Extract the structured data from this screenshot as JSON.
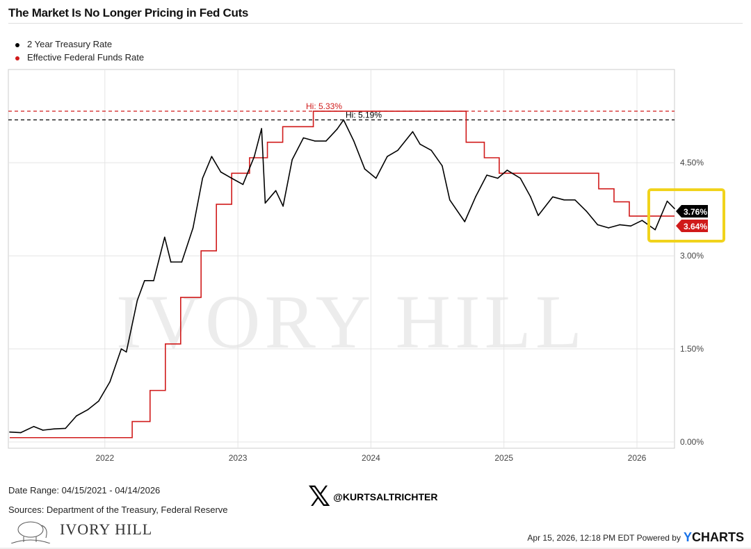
{
  "chart_data": {
    "type": "line",
    "title": "The Market Is No Longer Pricing in Fed Cuts",
    "xlabel": "",
    "ylabel": "",
    "xlim": [
      "2021-04-15",
      "2026-04-14"
    ],
    "ylim": [
      0,
      6.1
    ],
    "x_ticks": [
      "2022",
      "2023",
      "2024",
      "2025",
      "2026"
    ],
    "y_ticks": [
      "0.00%",
      "1.50%",
      "3.00%",
      "4.50%"
    ],
    "y_tick_values": [
      0,
      1.5,
      3.0,
      4.5
    ],
    "grid": true,
    "legend_position": "top-left",
    "series": [
      {
        "name": "2 Year Treasury Rate",
        "color": "#000000",
        "last_label": "3.76%",
        "high_label": "Hi: 5.19%",
        "high": 5.19,
        "points": [
          [
            "2021-04-15",
            0.16
          ],
          [
            "2021-05-15",
            0.15
          ],
          [
            "2021-06-20",
            0.25
          ],
          [
            "2021-07-15",
            0.19
          ],
          [
            "2021-08-15",
            0.21
          ],
          [
            "2021-09-15",
            0.22
          ],
          [
            "2021-10-15",
            0.42
          ],
          [
            "2021-11-15",
            0.52
          ],
          [
            "2021-12-15",
            0.66
          ],
          [
            "2022-01-15",
            0.97
          ],
          [
            "2022-02-15",
            1.5
          ],
          [
            "2022-03-01",
            1.45
          ],
          [
            "2022-03-31",
            2.28
          ],
          [
            "2022-04-20",
            2.6
          ],
          [
            "2022-05-15",
            2.6
          ],
          [
            "2022-06-14",
            3.3
          ],
          [
            "2022-07-01",
            2.9
          ],
          [
            "2022-07-31",
            2.9
          ],
          [
            "2022-08-31",
            3.45
          ],
          [
            "2022-09-26",
            4.25
          ],
          [
            "2022-10-21",
            4.6
          ],
          [
            "2022-11-15",
            4.35
          ],
          [
            "2022-12-15",
            4.25
          ],
          [
            "2023-01-15",
            4.15
          ],
          [
            "2023-02-15",
            4.6
          ],
          [
            "2023-03-07",
            5.05
          ],
          [
            "2023-03-17",
            3.85
          ],
          [
            "2023-04-15",
            4.05
          ],
          [
            "2023-05-05",
            3.8
          ],
          [
            "2023-05-30",
            4.55
          ],
          [
            "2023-06-30",
            4.9
          ],
          [
            "2023-07-31",
            4.85
          ],
          [
            "2023-08-31",
            4.85
          ],
          [
            "2023-09-30",
            5.04
          ],
          [
            "2023-10-18",
            5.19
          ],
          [
            "2023-11-15",
            4.85
          ],
          [
            "2023-12-15",
            4.4
          ],
          [
            "2024-01-15",
            4.25
          ],
          [
            "2024-02-15",
            4.6
          ],
          [
            "2024-03-15",
            4.7
          ],
          [
            "2024-04-25",
            5.0
          ],
          [
            "2024-05-15",
            4.8
          ],
          [
            "2024-06-15",
            4.7
          ],
          [
            "2024-07-15",
            4.45
          ],
          [
            "2024-08-05",
            3.9
          ],
          [
            "2024-09-15",
            3.55
          ],
          [
            "2024-10-15",
            3.95
          ],
          [
            "2024-11-15",
            4.3
          ],
          [
            "2024-12-15",
            4.25
          ],
          [
            "2025-01-10",
            4.38
          ],
          [
            "2025-02-15",
            4.25
          ],
          [
            "2025-03-15",
            3.95
          ],
          [
            "2025-04-05",
            3.65
          ],
          [
            "2025-05-15",
            3.95
          ],
          [
            "2025-06-15",
            3.9
          ],
          [
            "2025-07-15",
            3.9
          ],
          [
            "2025-08-15",
            3.72
          ],
          [
            "2025-09-15",
            3.5
          ],
          [
            "2025-10-15",
            3.45
          ],
          [
            "2025-11-15",
            3.5
          ],
          [
            "2025-12-15",
            3.48
          ],
          [
            "2026-01-15",
            3.57
          ],
          [
            "2026-02-20",
            3.42
          ],
          [
            "2026-03-25",
            3.88
          ],
          [
            "2026-04-14",
            3.76
          ]
        ]
      },
      {
        "name": "Effective Federal Funds Rate",
        "color": "#d01a1a",
        "last_label": "3.64%",
        "high_label": "Hi: 5.33%",
        "high": 5.33,
        "steps": [
          [
            "2021-04-15",
            0.07
          ],
          [
            "2022-03-17",
            0.33
          ],
          [
            "2022-05-05",
            0.83
          ],
          [
            "2022-06-16",
            1.58
          ],
          [
            "2022-07-28",
            2.33
          ],
          [
            "2022-09-22",
            3.08
          ],
          [
            "2022-11-03",
            3.83
          ],
          [
            "2022-12-15",
            4.33
          ],
          [
            "2023-02-02",
            4.58
          ],
          [
            "2023-03-23",
            4.83
          ],
          [
            "2023-05-04",
            5.08
          ],
          [
            "2023-07-27",
            5.33
          ],
          [
            "2024-09-19",
            4.83
          ],
          [
            "2024-11-08",
            4.58
          ],
          [
            "2024-12-19",
            4.33
          ],
          [
            "2025-09-18",
            4.08
          ],
          [
            "2025-10-30",
            3.87
          ],
          [
            "2025-12-11",
            3.64
          ],
          [
            "2026-04-14",
            3.64
          ]
        ]
      }
    ],
    "highlight_color": "#f1d31c"
  },
  "footer": {
    "date_range": "Date Range: 04/15/2021 - 04/14/2026",
    "sources": "Sources: Department of the Treasury, Federal Reserve",
    "handle": "@KURTSALTRICHTER",
    "brand": "IVORY HILL",
    "timestamp": "Apr 15, 2026, 12:18 PM EDT Powered by",
    "ycharts": "CHARTS",
    "ycharts_y": "Y"
  },
  "watermark": "IVORY HILL"
}
